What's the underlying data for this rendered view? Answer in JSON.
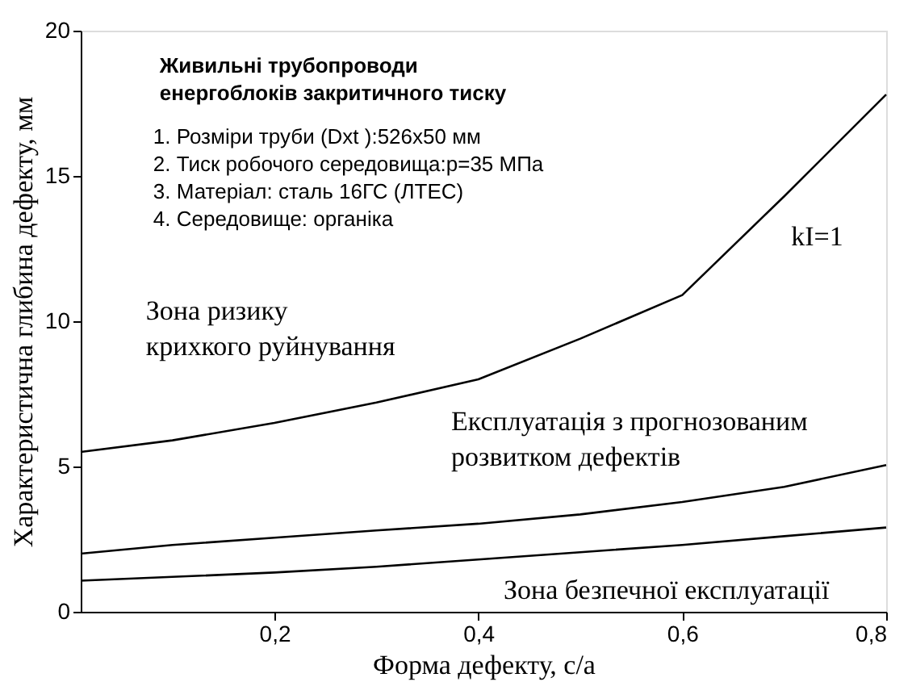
{
  "chart_data": {
    "type": "line",
    "xlabel": "Форма дефекту, c/a",
    "ylabel": "Характеристична глибина дефекту, мм",
    "xlim": [
      0.01,
      0.8
    ],
    "ylim": [
      0,
      20
    ],
    "xticks": [
      {
        "value": 0.2,
        "label": "0,2"
      },
      {
        "value": 0.4,
        "label": "0,4"
      },
      {
        "value": 0.6,
        "label": "0,6"
      },
      {
        "value": 0.8,
        "label": "0,8"
      }
    ],
    "yticks": [
      0,
      5,
      10,
      15,
      20
    ],
    "grid": false,
    "marker": "none",
    "line_style": "solid",
    "x": [
      0.01,
      0.1,
      0.2,
      0.3,
      0.4,
      0.5,
      0.6,
      0.7,
      0.8
    ],
    "series": [
      {
        "color": "#000000",
        "values": [
          5.5,
          5.9,
          6.5,
          7.2,
          8.0,
          9.4,
          10.9,
          14.3,
          17.8
        ]
      },
      {
        "color": "#000000",
        "values": [
          2.0,
          2.3,
          2.55,
          2.8,
          3.03,
          3.35,
          3.78,
          4.3,
          5.05
        ]
      },
      {
        "color": "#000000",
        "values": [
          1.07,
          1.2,
          1.35,
          1.55,
          1.8,
          2.05,
          2.3,
          2.6,
          2.9
        ]
      }
    ],
    "annotations": [
      "Живильні трубопроводи\nенергоблоків закритичного тиску",
      "1. Розміри труби (Dxt ):526х50 мм\n2. Тиск робочого середовища:p=35 МПа\n3. Матеріал: сталь 16ГС (ЛТЕС)\n4. Середовище: органіка",
      "Зона ризику\nкрихкого руйнування",
      "Експлуатація з прогнозованим\nрозвитком дефектів",
      "Зона безпечної експлуатації",
      "kI=1"
    ]
  }
}
